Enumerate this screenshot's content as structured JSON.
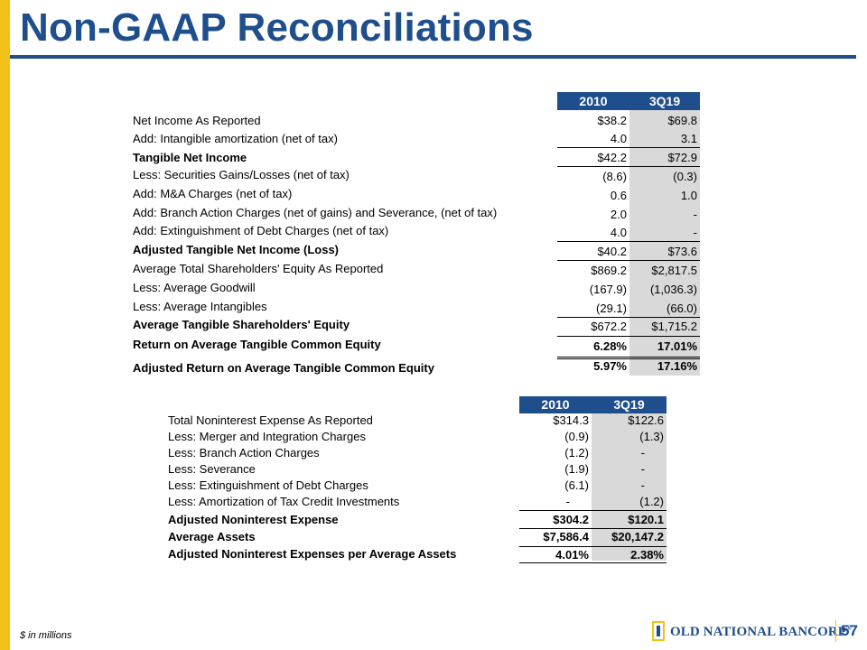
{
  "title": "Non-GAAP Reconciliations",
  "table1": {
    "headers": [
      "2010",
      "3Q19"
    ],
    "rows": [
      {
        "label": "Net Income As Reported",
        "v1": "$38.2",
        "v2": "$69.8"
      },
      {
        "label": "Add: Intangible amortization (net of tax)",
        "v1": "4.0",
        "v2": "3.1"
      },
      {
        "label": "Tangible Net Income",
        "v1": "$42.2",
        "v2": "$72.9"
      },
      {
        "label": "Less: Securities Gains/Losses (net of tax)",
        "v1": "(8.6)",
        "v2": "(0.3)"
      },
      {
        "label": "Add: M&A Charges (net of tax)",
        "v1": "0.6",
        "v2": "1.0"
      },
      {
        "label": "Add: Branch Action Charges (net of gains) and Severance, (net of tax)",
        "v1": "2.0",
        "v2": "-"
      },
      {
        "label": "Add: Extinguishment of Debt Charges (net of tax)",
        "v1": "4.0",
        "v2": "-"
      },
      {
        "label": "Adjusted Tangible Net Income (Loss)",
        "v1": "$40.2",
        "v2": "$73.6"
      },
      {
        "label": "Average Total Shareholders' Equity As Reported",
        "v1": "$869.2",
        "v2": "$2,817.5"
      },
      {
        "label": "Less: Average Goodwill",
        "v1": "(167.9)",
        "v2": "(1,036.3)"
      },
      {
        "label": "Less: Average Intangibles",
        "v1": "(29.1)",
        "v2": "(66.0)"
      },
      {
        "label": "Average Tangible Shareholders' Equity",
        "v1": "$672.2",
        "v2": "$1,715.2"
      },
      {
        "label": "Return on Average Tangible Common Equity",
        "v1": "6.28%",
        "v2": "17.01%"
      },
      {
        "label": "Adjusted Return on Average Tangible Common Equity",
        "v1": "5.97%",
        "v2": "17.16%"
      }
    ]
  },
  "table2": {
    "headers": [
      "2010",
      "3Q19"
    ],
    "rows": [
      {
        "label": "Total Noninterest Expense As Reported",
        "v1": "$314.3",
        "v2": "$122.6"
      },
      {
        "label": "Less: Merger and Integration Charges",
        "v1": "(0.9)",
        "v2": "(1.3)"
      },
      {
        "label": "Less: Branch Action Charges",
        "v1": "(1.2)",
        "v2": "-"
      },
      {
        "label": "Less: Severance",
        "v1": "(1.9)",
        "v2": "-"
      },
      {
        "label": "Less: Extinguishment of Debt Charges",
        "v1": "(6.1)",
        "v2": "-"
      },
      {
        "label": "Less: Amortization of Tax Credit Investments",
        "v1": "-",
        "v2": "(1.2)"
      },
      {
        "label": "Adjusted Noninterest Expense",
        "v1": "$304.2",
        "v2": "$120.1"
      },
      {
        "label": "Average Assets",
        "v1": "$7,586.4",
        "v2": "$20,147.2"
      },
      {
        "label": "Adjusted Noninterest Expenses per Average Assets",
        "v1": "4.01%",
        "v2": "2.38%"
      }
    ]
  },
  "footnote": "$ in millions",
  "brand": {
    "name": "OLD NATIONAL BANCORP",
    "reg": "®"
  },
  "page_number": "57",
  "colors": {
    "brand_blue": "#1f4e8c",
    "brand_gold": "#f2c218",
    "shade": "#d9d9d9"
  }
}
